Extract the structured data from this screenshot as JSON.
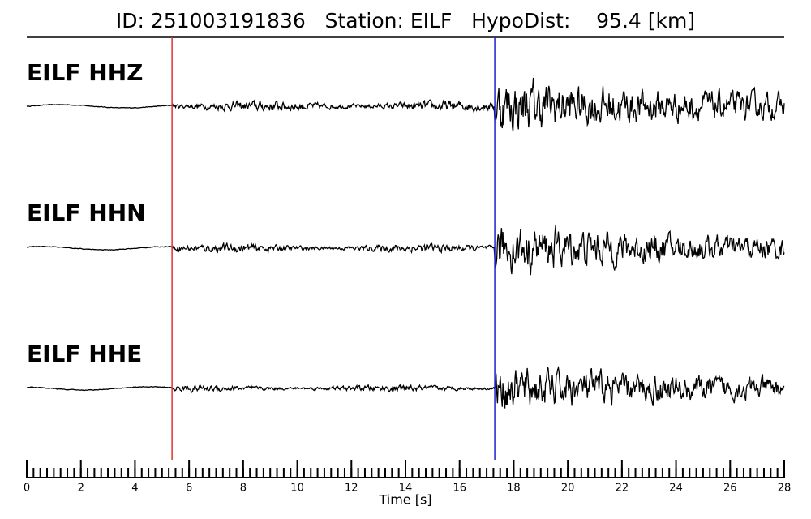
{
  "chart_data": {
    "type": "seismogram",
    "title": "ID: 251003191836   Station: EILF   HypoDist:    95.4 [km]",
    "xlabel": "Time [s]",
    "xlim": [
      0,
      28
    ],
    "xticks": [
      0,
      2,
      4,
      6,
      8,
      10,
      12,
      14,
      16,
      18,
      20,
      22,
      24,
      26,
      28
    ],
    "xminor_step": 0.25,
    "label_color": "#4c9a00",
    "traces": [
      {
        "name": "EILF HHZ",
        "color": "#000000"
      },
      {
        "name": "EILF HHN",
        "color": "#000000"
      },
      {
        "name": "EILF HHE",
        "color": "#000000"
      }
    ],
    "picks": [
      {
        "x": 5.37,
        "color": "#e0302c"
      },
      {
        "x": 17.3,
        "color": "#1f1fd0"
      }
    ]
  }
}
